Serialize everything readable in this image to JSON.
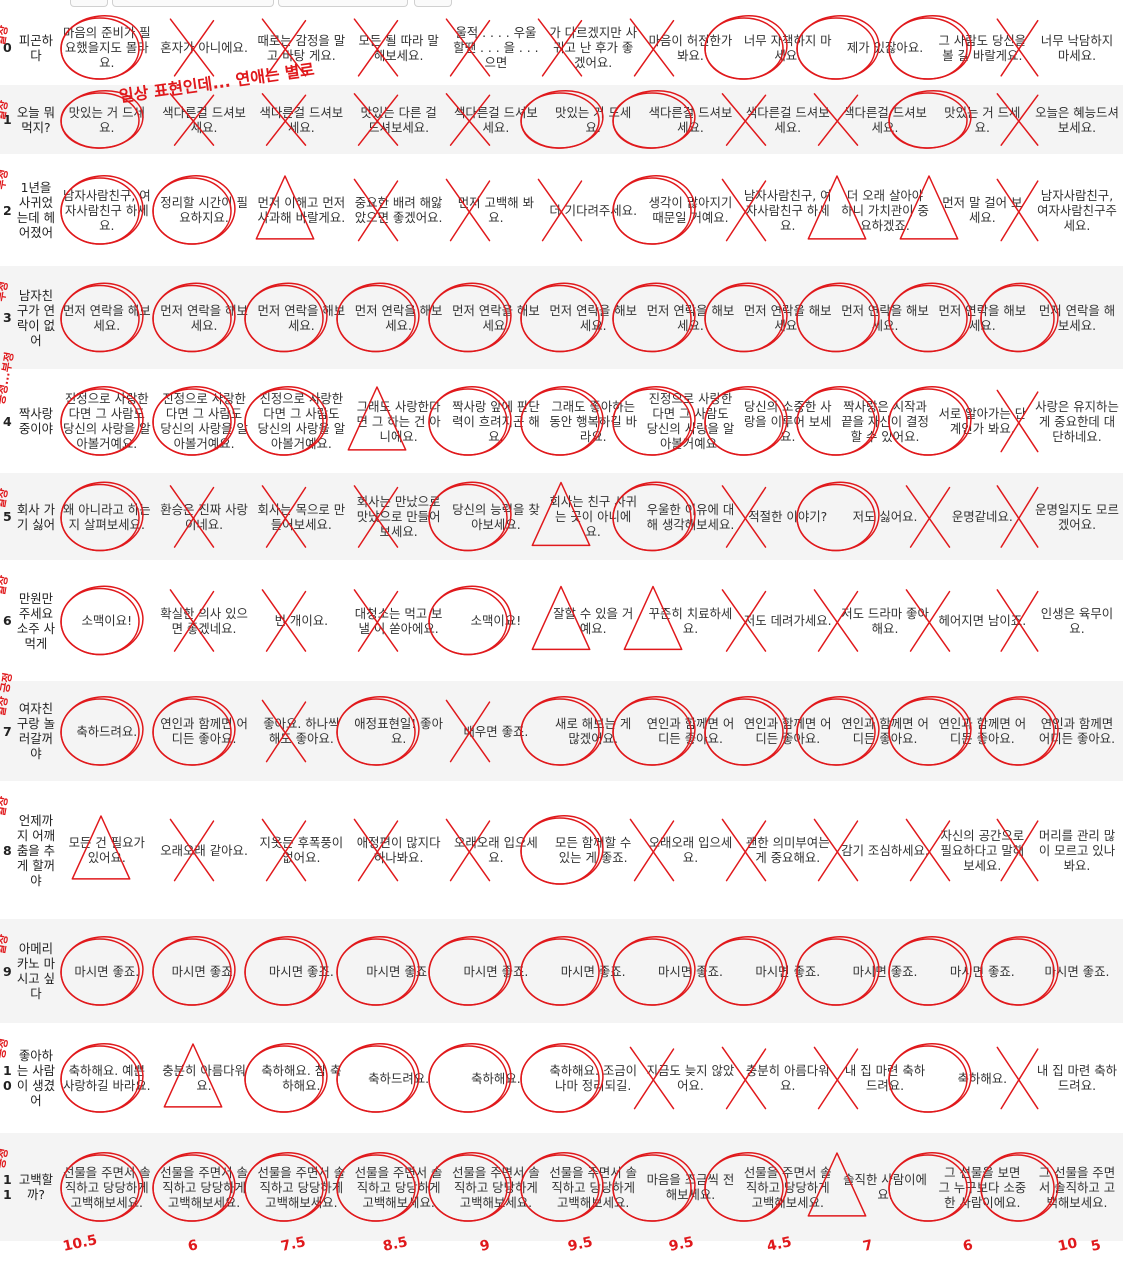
{
  "rows": [
    {
      "idx": "0",
      "q": "피곤하다",
      "cells": [
        "마음의 준비가 필요했을지도 몰라요.",
        "혼자가 아니에요.",
        "때로는 감정을 말고 바탕 게요.",
        "모든 될 따라 말해보세요.",
        "울적 . . . . 우울할땐 . . . 을 . . . 으면",
        "가 다르겠지만 사귀고 난 후가 좋겠어요.",
        "마음이 허전한가봐요.",
        "너무 자책하지 마세요.",
        "제가 있잖아요.",
        "그 사람도 당신을 볼 길 바랄게요.",
        "너무 낙담하지 마세요."
      ]
    },
    {
      "idx": "1",
      "q": "오늘 뭐 먹지?",
      "cells": [
        "맛있는 거 드세요.",
        "색다른걸 드셔보세요.",
        "색다른걸 드셔보세요.",
        "맛있는 다른 걸 드셔보세요.",
        "색다른걸 드셔보세요.",
        "맛있는 거 드세요.",
        "색다른걸 드셔보세요.",
        "색다른걸 드셔보세요.",
        "색다른걸 드셔보세요.",
        "맛있는 거 드세요.",
        "오늘은 혜능드셔보세요."
      ]
    },
    {
      "idx": "2",
      "q": "1년을 사귀었는데 헤어졌어",
      "cells": [
        "남자사람친구, 여자사람친구 하세요.",
        "정리할 시간이 필요하지요.",
        "먼저 이해고 먼저 사과해 바랄게요.",
        "중요한 배려 해앓았으면 좋겠어요.",
        "먼저 고백해 봐요.",
        "더 기다려주세요.",
        "생각이 많아지기 때문일 거예요.",
        "남자사람친구, 여자사람친구 하세요.",
        "더 오래 살아야 하니 가치관이 중요하겠죠.",
        "먼저 말 걸어 보세요.",
        "남자사람친구, 여자사람친구주세요."
      ]
    },
    {
      "idx": "3",
      "q": "남자친구가 연락이 없어",
      "cells": [
        "먼저 연락을 해보세요.",
        "먼저 연락을 해보세요.",
        "먼저 연락을 해보세요.",
        "먼저 연락을 해보세요.",
        "먼저 연락을 해보세요.",
        "먼저 연락을 해보세요.",
        "먼저 연락을 해보세요.",
        "먼저 연락을 해보세요.",
        "먼저 연락을 해보세요.",
        "먼저 연락을 해보세요.",
        "먼저 연락을 해보세요."
      ]
    },
    {
      "idx": "4",
      "q": "짝사랑 중이야",
      "cells": [
        "진정으로 사랑한다면 그 사람도 당신의 사랑을 알아볼거예요.",
        "진정으로 사랑한다면 그 사람도 당신의 사랑을 알아볼거예요.",
        "진정으로 사랑한다면 그 사람도 당신의 사랑을 알아볼거예요.",
        "그래도 사랑한다면 그 하는 건 아니에요.",
        "짝사랑 앞에 판단력이 흐려지곤 해요.",
        "그래도 좋아하는 동안 행복하길 바라요.",
        "진정으로 사랑한다면 그 사람도 당신의 사랑을 알아볼거예요.",
        "당신의 소중한 사랑을 이루어 보세요.",
        "짝사랑은 시작과 끝을 자신이 결정할 수 있어요.",
        "서로 알아가는 단계인가 봐요.",
        "사랑은 유지하는 게 중요한데 대단하네요."
      ]
    },
    {
      "idx": "5",
      "q": "회사 가기 싫어",
      "cells": [
        "왜 아니라고 하는지 살펴보세요.",
        "환승은 진짜 사랑이네요.",
        "회사는 목으로 만들어보세요.",
        "회사는 만났으로 맛났으로 만들어보세요.",
        "당신의 능력을 찾아보세요.",
        "회사는 친구 사귀는 곳이 아니에요.",
        "우울한 이유에 대해 생각해보세요.",
        "적절한 이야기?",
        "저도 싫어요.",
        "운명같네요.",
        "운명일지도 모르겠어요."
      ]
    },
    {
      "idx": "6",
      "q": "만원만 주세요 소주 사먹게",
      "cells": [
        "소맥이요!",
        "확실한 의사 있으면 좋겠네요.",
        "번 개이요.",
        "대청소는 먹고 보낼 이 쏟아에요.",
        "소맥이요!",
        "잘할 수 있을 거예요.",
        "꾸준히 치료하세요.",
        "저도 데려가세요.",
        "저도 드라마 좋아해요.",
        "헤어지면 남이죠.",
        "인생은 육무이요."
      ]
    },
    {
      "idx": "7",
      "q": "여자친구랑 놀러갈꺼야",
      "cells": [
        "축하드려요.",
        "연인과 함께면 어디든 좋아요.",
        "좋아요. 하나씩 해도 좋아요.",
        "애정표현일! 좋아요.",
        "배우면 좋죠.",
        "새로 해보는 게 많겠어요.",
        "연인과 함께면 어디든 좋아요.",
        "연인과 함께면 어디든 좋아요.",
        "연인과 함께면 어디든 좋아요.",
        "연인과 함께면 어디든 좋아요.",
        "연인과 함께면 어디든 좋아요."
      ]
    },
    {
      "idx": "8",
      "q": "언제까지 어깨춤을 추게 할꺼야",
      "cells": [
        "모든 건 필요가 있어요.",
        "오래오래 같아요.",
        "지옷든 후폭풍이 없어요.",
        "애정편이 많지다 하나봐요.",
        "오래오래 입으세요.",
        "모든 함께할 수 있는 게 좋죠.",
        "오래오래 입으세요.",
        "괜한 의미부여는 게 중요해요.",
        "감기 조심하세요.",
        "자신의 공간으로 필요하다고 말해보세요.",
        "머리를 관리 많이 모르고 있나봐요."
      ]
    },
    {
      "idx": "9",
      "q": "아메리카노 마시고 싶다",
      "cells": [
        "마시면 좋죠.",
        "마시면 좋죠.",
        "마시면 좋죠.",
        "마시면 좋죠.",
        "마시면 좋죠.",
        "마시면 좋죠.",
        "마시면 좋죠.",
        "마시면 좋죠.",
        "마시면 좋죠.",
        "마시면 좋죠.",
        "마시면 좋죠."
      ]
    },
    {
      "idx": "10",
      "q": "좋아하는 사람이 생겼어",
      "cells": [
        "축하해요. 예쁜 사랑하길 바라요.",
        "충분히 아름다워요.",
        "축하해요. 참 축하해요.",
        "축하드려요.",
        "축하해요.",
        "축하해요. 조금이나마 정리되길.",
        "지금도 늦지 않았어요.",
        "충분히 아름다워요.",
        "내 집 마련 축하드려요.",
        "축하해요.",
        "내 집 마련 축하드려요."
      ]
    },
    {
      "idx": "11",
      "q": "고백할까?",
      "cells": [
        "선물을 주면서 솔직하고 당당하게 고백해보세요.",
        "선물을 주면서 솔직하고 당당하게 고백해보세요.",
        "선물을 주면서 솔직하고 당당하게 고백해보세요.",
        "선물을 주면서 솔직하고 당당하게 고백해보세요.",
        "선물을 주면서 솔직하고 당당하게 고백해보세요.",
        "선물을 주면서 솔직하고 당당하게 고백해보세요.",
        "마음을 조금씩 전해보세요.",
        "선물을 주면서 솔직하고 당당하게 고백해보세요.",
        "솔직한 사람이에요.",
        "그 선물을 보면 그 누구보다 소중한 사람이에요.",
        "그 선물을 주면서 솔직하고 고백해보세요."
      ]
    }
  ],
  "annotations": {
    "categories": [
      "일상",
      "일상",
      "부정",
      "부정",
      "긍정...부정",
      "일상",
      "일상",
      "일상 긍정",
      "일상",
      "일상",
      "긍정",
      "긍정"
    ],
    "note": "일상 표현인데... 연애는 별로",
    "scores": [
      "10.5",
      "6",
      "7.5",
      "8.5",
      "9",
      "9.5",
      "9.5",
      "4.5",
      "7",
      "6",
      "10",
      "5"
    ]
  }
}
